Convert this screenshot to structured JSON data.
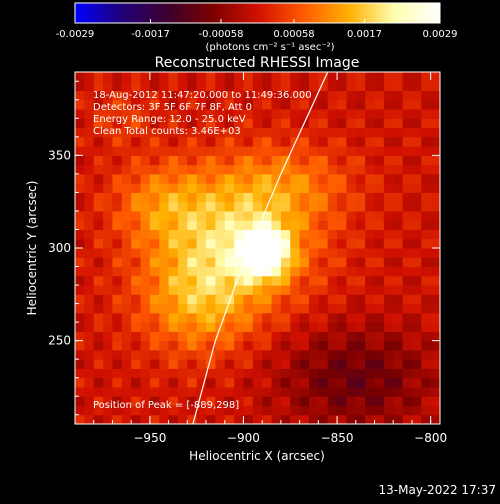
{
  "chart_data": {
    "type": "heatmap",
    "title": "Reconstructed RHESSI Image",
    "colorbar": {
      "ticks": [
        "-0.0029",
        "-0.0017",
        "-0.00058",
        "0.00058",
        "0.0017",
        "0.0029"
      ],
      "range": [
        -0.0029,
        0.0029
      ],
      "units_label": "(photons cm⁻² s⁻¹ asec⁻²)",
      "colormap_colors": [
        "#0000ff",
        "#20007a",
        "#3a0030",
        "#7a0000",
        "#d01000",
        "#ff5a00",
        "#ffb000",
        "#ffffb0",
        "#ffffff"
      ]
    },
    "xlabel": "Heliocentric X (arcsec)",
    "ylabel": "Heliocentric Y (arcsec)",
    "xlim": [
      -990,
      -795
    ],
    "ylim": [
      205,
      395
    ],
    "xticks": [
      -950,
      -900,
      -850,
      -800
    ],
    "yticks": [
      250,
      300,
      350
    ],
    "info_lines": [
      "18-Aug-2012 11:47:20.000 to 11:49:36.000",
      "Detectors: 3F 5F 6F 7F 8F, Att 0",
      "Energy Range: 12.0 - 25.0 keV",
      "Clean     Total counts: 3.46E+03"
    ],
    "peak_label": "Position of Peak = [-889,298]",
    "peak": {
      "x": -889,
      "y": 298
    },
    "limb": [
      [
        -927,
        205
      ],
      [
        -915,
        250
      ],
      [
        -900,
        292
      ],
      [
        -880,
        340
      ],
      [
        -855,
        395
      ]
    ],
    "sources": [
      {
        "x": -889,
        "y": 298,
        "sx": 9,
        "sy": 9,
        "amp": 0.0029
      },
      {
        "x": -905,
        "y": 305,
        "sx": 30,
        "sy": 26,
        "amp": 0.0017
      },
      {
        "x": -925,
        "y": 270,
        "sx": 22,
        "sy": 20,
        "amp": 0.0011
      },
      {
        "x": -945,
        "y": 325,
        "sx": 18,
        "sy": 15,
        "amp": 0.0008
      },
      {
        "x": -875,
        "y": 335,
        "sx": 25,
        "sy": 15,
        "amp": 0.0007
      },
      {
        "x": -840,
        "y": 230,
        "sx": 30,
        "sy": 20,
        "amp": -0.0009
      },
      {
        "x": -965,
        "y": 370,
        "sx": 12,
        "sy": 10,
        "amp": 0.0004
      }
    ]
  },
  "timestamp": "13-May-2022 17:37"
}
